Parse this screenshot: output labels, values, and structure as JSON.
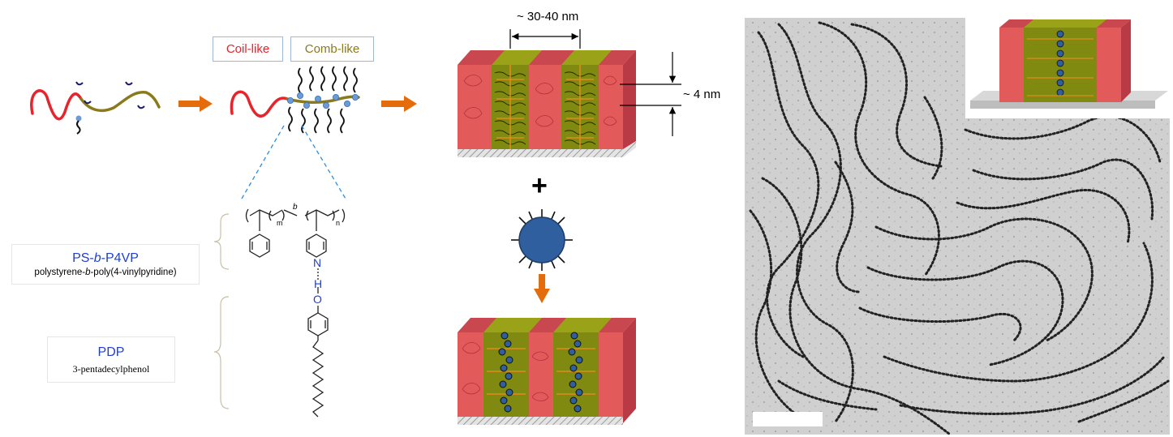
{
  "labels": {
    "coil_like": "Coil-like",
    "comb_like": "Comb-like",
    "spacing_top": "~ 30-40 nm",
    "spacing_side": "~ 4 nm",
    "plus": "+"
  },
  "boxes": {
    "ps_title_pre": "PS-",
    "ps_title_b": "b",
    "ps_title_post": "-P4VP",
    "ps_subtitle_pre": "polystyrene-",
    "ps_subtitle_b": "b",
    "ps_subtitle_post": "-poly(4-vinylpyridine)",
    "pdp_title": "PDP",
    "pdp_subtitle": "3-pentadecylphenol"
  },
  "structure": {
    "m": "m",
    "n": "n",
    "b": "b",
    "N": "N",
    "H": "H",
    "O": "O"
  },
  "colors": {
    "coil": "#e8232b",
    "comb": "#8a7a1c",
    "arrow": "#e46c0a",
    "blue_text": "#1f3fd0",
    "pink": "#e35a5a",
    "olive": "#8a8f10",
    "nanoparticle": "#2f5f9e",
    "dashed": "#2a8de0"
  }
}
